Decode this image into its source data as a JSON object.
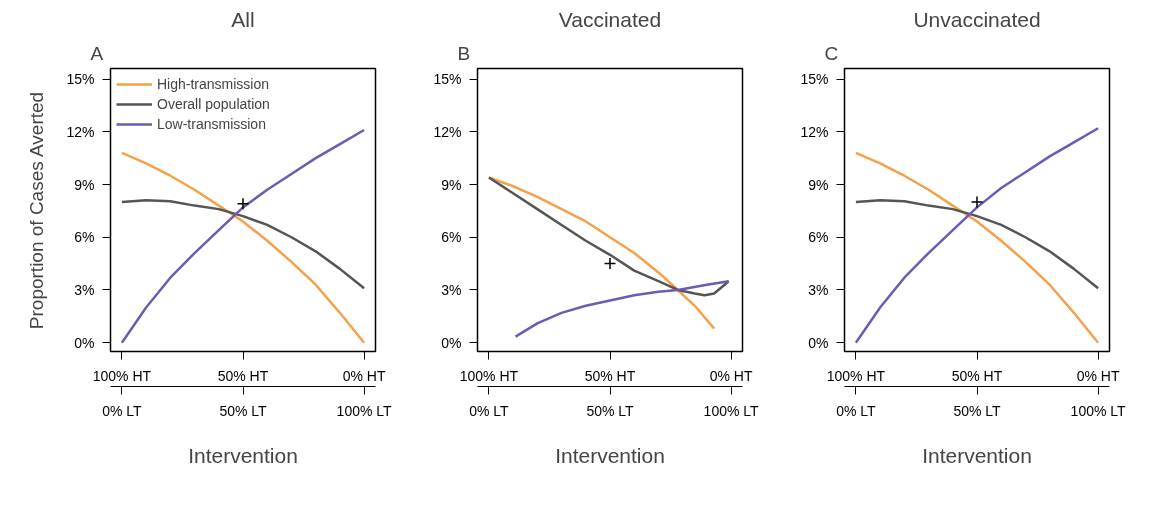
{
  "chart_data": [
    {
      "type": "line",
      "title": "All",
      "annotations": [
        "A"
      ],
      "xlabel": "Intervention",
      "ylabel": "Proportion of Cases Averted",
      "xlim": [
        104.7,
        -4.7
      ],
      "xticks": [
        {
          "value": 100,
          "label": "100% HT"
        },
        {
          "value": 50,
          "label": "50% HT"
        },
        {
          "value": 0,
          "label": "0% HT"
        }
      ],
      "x2lim": [
        -4.7,
        104.7
      ],
      "x2ticks": [
        {
          "value": 0,
          "label": "0% LT"
        },
        {
          "value": 50,
          "label": "50% LT"
        },
        {
          "value": 100,
          "label": "100% LT"
        }
      ],
      "ylim": [
        -0.5,
        15.6
      ],
      "yticks": [
        {
          "value": 0,
          "label": "0%"
        },
        {
          "value": 3,
          "label": "3%"
        },
        {
          "value": 6,
          "label": "6%"
        },
        {
          "value": 9,
          "label": "9%"
        },
        {
          "value": 12,
          "label": "12%"
        },
        {
          "value": 15,
          "label": "15%"
        }
      ],
      "grid": false,
      "legend": "top left",
      "series": [
        {
          "name": "High-transmission",
          "color": "#f5a04a",
          "x": [
            100,
            90,
            80,
            70,
            60,
            50,
            40,
            30,
            20,
            10,
            0
          ],
          "values": [
            10.8,
            10.2,
            9.5,
            8.7,
            7.8,
            6.9,
            5.8,
            4.6,
            3.3,
            1.7,
            0
          ]
        },
        {
          "name": "Overall population",
          "color": "#555555",
          "x": [
            100,
            90,
            80,
            70,
            60,
            50,
            40,
            30,
            20,
            10,
            0
          ],
          "values": [
            8.0,
            8.1,
            8.05,
            7.8,
            7.6,
            7.2,
            6.7,
            6.0,
            5.2,
            4.2,
            3.1
          ]
        },
        {
          "name": "Low-transmission",
          "color": "#6b5bb5",
          "x": [
            100,
            90,
            80,
            70,
            60,
            50,
            40,
            30,
            20,
            10,
            0
          ],
          "values": [
            0,
            2.0,
            3.7,
            5.1,
            6.4,
            7.7,
            8.7,
            9.6,
            10.5,
            11.3,
            12.1
          ]
        },
        {
          "type": "scatter",
          "marker": "cross",
          "color": "#000000",
          "x": [
            50
          ],
          "values": [
            7.9
          ]
        }
      ]
    },
    {
      "type": "line",
      "title": "Vaccinated",
      "annotations": [
        "B"
      ],
      "xlabel": "Intervention",
      "xlim": [
        104.7,
        -4.7
      ],
      "xticks": [
        {
          "value": 100,
          "label": "100% HT"
        },
        {
          "value": 50,
          "label": "50% HT"
        },
        {
          "value": 0,
          "label": "0% HT"
        }
      ],
      "x2lim": [
        -4.7,
        104.7
      ],
      "x2ticks": [
        {
          "value": 0,
          "label": "0% LT"
        },
        {
          "value": 50,
          "label": "50% LT"
        },
        {
          "value": 100,
          "label": "100% LT"
        }
      ],
      "ylim": [
        -0.5,
        15.6
      ],
      "yticks": [
        {
          "value": 0,
          "label": "0%"
        },
        {
          "value": 3,
          "label": "3%"
        },
        {
          "value": 6,
          "label": "6%"
        },
        {
          "value": 9,
          "label": "9%"
        },
        {
          "value": 12,
          "label": "12%"
        },
        {
          "value": 15,
          "label": "15%"
        }
      ],
      "grid": false,
      "series": [
        {
          "color": "#f5a04a",
          "x": [
            100,
            90,
            80,
            70,
            60,
            50,
            40,
            30,
            22,
            15,
            7
          ],
          "values": [
            9.4,
            8.9,
            8.3,
            7.6,
            6.9,
            6.0,
            5.1,
            4.0,
            3.0,
            2.1,
            0.8
          ]
        },
        {
          "color": "#555555",
          "x": [
            100,
            90,
            80,
            70,
            60,
            50,
            40,
            30,
            22,
            15,
            11,
            7,
            1
          ],
          "values": [
            9.4,
            8.5,
            7.6,
            6.7,
            5.8,
            5.0,
            4.1,
            3.5,
            3.0,
            2.8,
            2.7,
            2.8,
            3.5
          ]
        },
        {
          "color": "#6b5bb5",
          "x": [
            89,
            80,
            70,
            60,
            50,
            40,
            30,
            22,
            10,
            1
          ],
          "values": [
            0.35,
            1.1,
            1.7,
            2.1,
            2.4,
            2.7,
            2.9,
            3.0,
            3.3,
            3.5
          ]
        },
        {
          "type": "scatter",
          "marker": "cross",
          "color": "#000000",
          "x": [
            50
          ],
          "values": [
            4.5
          ]
        }
      ]
    },
    {
      "type": "line",
      "title": "Unvaccinated",
      "annotations": [
        "C"
      ],
      "xlabel": "Intervention",
      "xlim": [
        104.7,
        -4.7
      ],
      "xticks": [
        {
          "value": 100,
          "label": "100% HT"
        },
        {
          "value": 50,
          "label": "50% HT"
        },
        {
          "value": 0,
          "label": "0% HT"
        }
      ],
      "x2lim": [
        -4.7,
        104.7
      ],
      "x2ticks": [
        {
          "value": 0,
          "label": "0% LT"
        },
        {
          "value": 50,
          "label": "50% LT"
        },
        {
          "value": 100,
          "label": "100% LT"
        }
      ],
      "ylim": [
        -0.5,
        15.6
      ],
      "yticks": [
        {
          "value": 0,
          "label": "0%"
        },
        {
          "value": 3,
          "label": "3%"
        },
        {
          "value": 6,
          "label": "6%"
        },
        {
          "value": 9,
          "label": "9%"
        },
        {
          "value": 12,
          "label": "12%"
        },
        {
          "value": 15,
          "label": "15%"
        }
      ],
      "grid": false,
      "series": [
        {
          "color": "#f5a04a",
          "x": [
            100,
            90,
            80,
            70,
            60,
            50,
            40,
            30,
            20,
            10,
            0
          ],
          "values": [
            10.8,
            10.2,
            9.5,
            8.7,
            7.8,
            6.9,
            5.8,
            4.6,
            3.3,
            1.7,
            0
          ]
        },
        {
          "color": "#555555",
          "x": [
            100,
            90,
            80,
            70,
            60,
            50,
            40,
            30,
            20,
            10,
            0
          ],
          "values": [
            8.0,
            8.1,
            8.05,
            7.8,
            7.6,
            7.2,
            6.7,
            6.0,
            5.2,
            4.2,
            3.1
          ]
        },
        {
          "color": "#6b5bb5",
          "x": [
            100,
            90,
            80,
            70,
            60,
            50,
            40,
            30,
            20,
            10,
            0
          ],
          "values": [
            0,
            2.0,
            3.7,
            5.1,
            6.4,
            7.7,
            8.8,
            9.7,
            10.6,
            11.4,
            12.2
          ]
        },
        {
          "type": "scatter",
          "marker": "cross",
          "color": "#000000",
          "x": [
            50
          ],
          "values": [
            8.0
          ]
        }
      ]
    }
  ]
}
